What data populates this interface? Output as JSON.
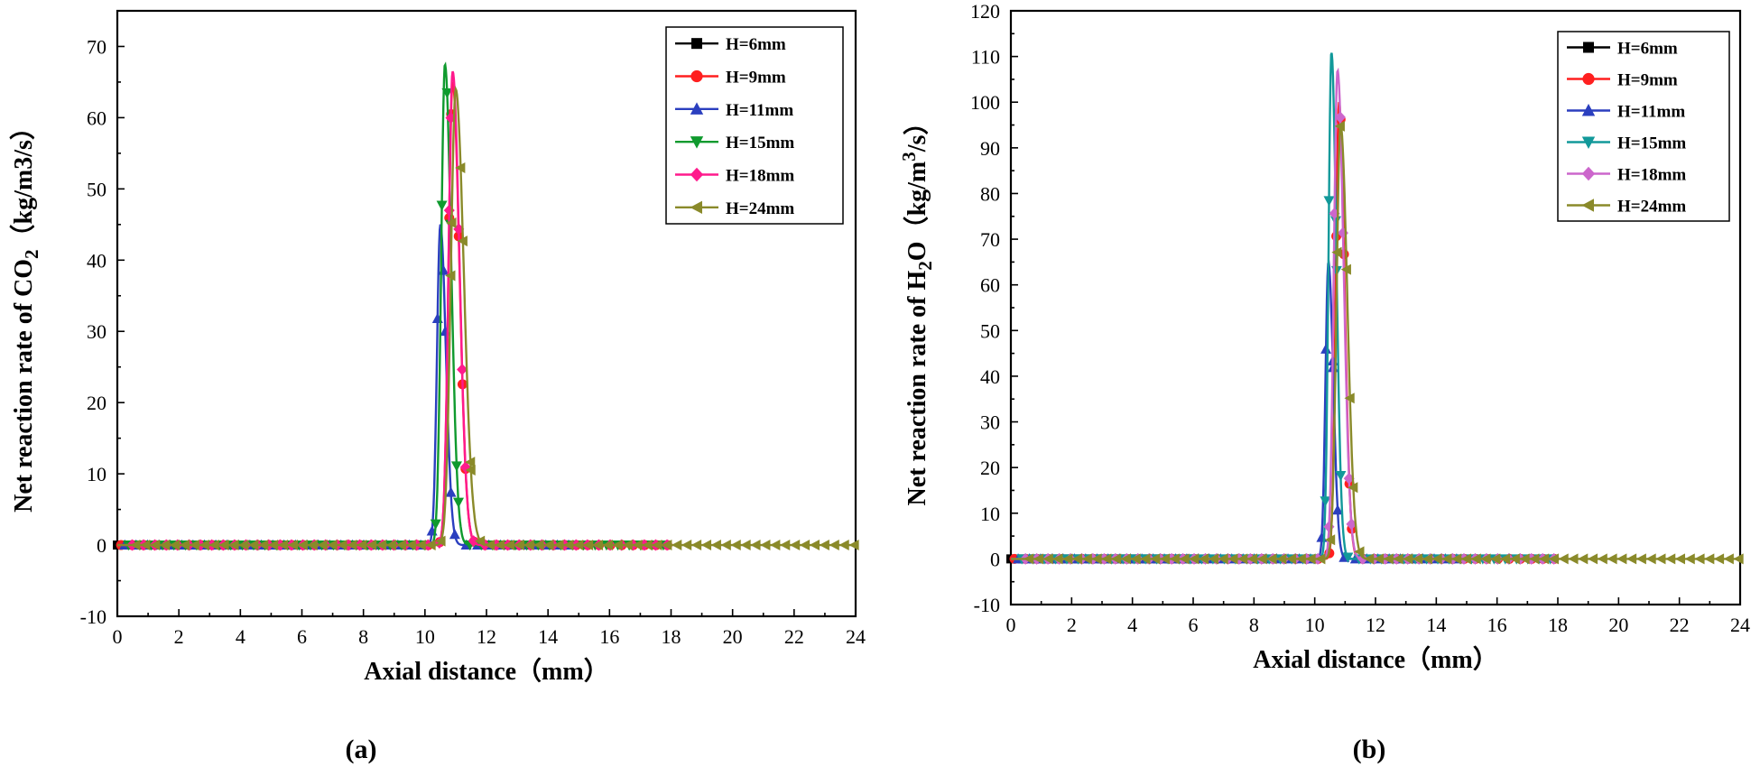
{
  "chart_data": [
    {
      "type": "line",
      "panel_label": "(a)",
      "xlabel": "Axial distance（mm）",
      "ylabel_prefix": "Net reaction rate of CO",
      "ylabel_sub": "2",
      "ylabel_suffix": "（kg/m3/s）",
      "xlim": [
        0,
        24
      ],
      "ylim": [
        -10,
        75
      ],
      "xticks": [
        0,
        2,
        4,
        6,
        8,
        10,
        12,
        14,
        16,
        18,
        20,
        22,
        24
      ],
      "yticks": [
        -10,
        0,
        10,
        20,
        30,
        40,
        50,
        60,
        70
      ],
      "legend_position": "top-right",
      "series": [
        {
          "name": "H=6mm",
          "color": "#000000",
          "marker": "square",
          "end": 6,
          "peak_x": 10.6,
          "peak_y": 0,
          "peak_width": 0.2
        },
        {
          "name": "H=9mm",
          "color": "#ff1f1f",
          "marker": "circle",
          "end": 18,
          "peak_x": 10.9,
          "peak_y": 65,
          "peak_width": 0.22
        },
        {
          "name": "H=11mm",
          "color": "#2b3fbf",
          "marker": "triangle-up",
          "end": 15,
          "peak_x": 10.5,
          "peak_y": 45,
          "peak_width": 0.18
        },
        {
          "name": "H=15mm",
          "color": "#0f9a2e",
          "marker": "triangle-down",
          "end": 18,
          "peak_x": 10.65,
          "peak_y": 67.5,
          "peak_width": 0.2
        },
        {
          "name": "H=18mm",
          "color": "#ff1a8c",
          "marker": "diamond",
          "end": 18,
          "peak_x": 10.9,
          "peak_y": 66.5,
          "peak_width": 0.22
        },
        {
          "name": "H=24mm",
          "color": "#8a8a2a",
          "marker": "triangle-left",
          "end": 24,
          "peak_x": 11.0,
          "peak_y": 64,
          "peak_width": 0.26
        }
      ]
    },
    {
      "type": "line",
      "panel_label": "(b)",
      "xlabel": "Axial distance（mm）",
      "ylabel_prefix": "Net reaction rate of H",
      "ylabel_sub": "2",
      "ylabel_mid": "O",
      "ylabel_suffix": "（kg/m",
      "ylabel_sup": "3",
      "ylabel_end": "/s）",
      "xlim": [
        0,
        24
      ],
      "ylim": [
        -10,
        120
      ],
      "xticks": [
        0,
        2,
        4,
        6,
        8,
        10,
        12,
        14,
        16,
        18,
        20,
        22,
        24
      ],
      "yticks": [
        -10,
        0,
        10,
        20,
        30,
        40,
        50,
        60,
        70,
        80,
        90,
        100,
        110,
        120
      ],
      "legend_position": "top-right",
      "series": [
        {
          "name": "H=6mm",
          "color": "#000000",
          "marker": "square",
          "end": 6,
          "peak_x": 10.5,
          "peak_y": 0,
          "peak_width": 0.2
        },
        {
          "name": "H=9mm",
          "color": "#ff1f1f",
          "marker": "circle",
          "end": 18,
          "peak_x": 10.8,
          "peak_y": 100,
          "peak_width": 0.18
        },
        {
          "name": "H=11mm",
          "color": "#2b3fbf",
          "marker": "triangle-up",
          "end": 15,
          "peak_x": 10.45,
          "peak_y": 65,
          "peak_width": 0.16
        },
        {
          "name": "H=15mm",
          "color": "#12999a",
          "marker": "triangle-down",
          "end": 18,
          "peak_x": 10.55,
          "peak_y": 111,
          "peak_width": 0.16
        },
        {
          "name": "H=18mm",
          "color": "#cc66cc",
          "marker": "diamond",
          "end": 18,
          "peak_x": 10.75,
          "peak_y": 107,
          "peak_width": 0.2
        },
        {
          "name": "H=24mm",
          "color": "#8a8a2a",
          "marker": "triangle-left",
          "end": 24,
          "peak_x": 10.85,
          "peak_y": 95,
          "peak_width": 0.22
        }
      ]
    }
  ]
}
